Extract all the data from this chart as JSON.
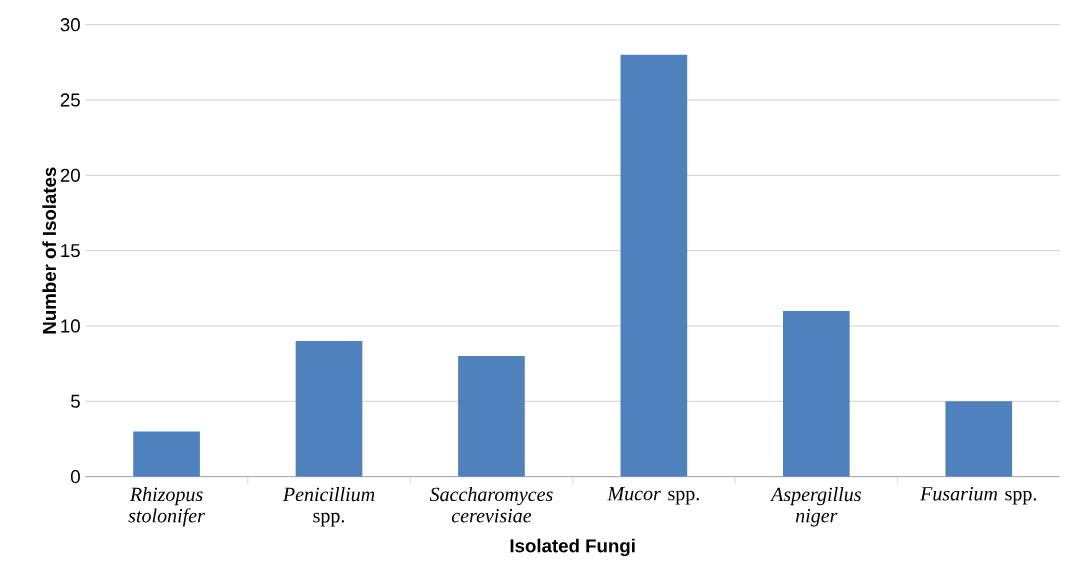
{
  "chart_data": {
    "type": "bar",
    "xlabel": "Isolated Fungi",
    "ylabel": "Number of Isolates",
    "categories": [
      "*Rhizopus stolonifer*",
      "*Penicillium* spp.",
      "*Saccharomyces cerevisiae*",
      "*Mucor* spp.",
      "*Aspergillus niger*",
      "*Fusarium* spp."
    ],
    "values": [
      3,
      9,
      8,
      28,
      11,
      5
    ],
    "color": "#4f81bd",
    "ylim": [
      0,
      30
    ],
    "yticks": [
      0,
      5,
      10,
      15,
      20,
      25,
      30
    ],
    "grid": "y"
  }
}
